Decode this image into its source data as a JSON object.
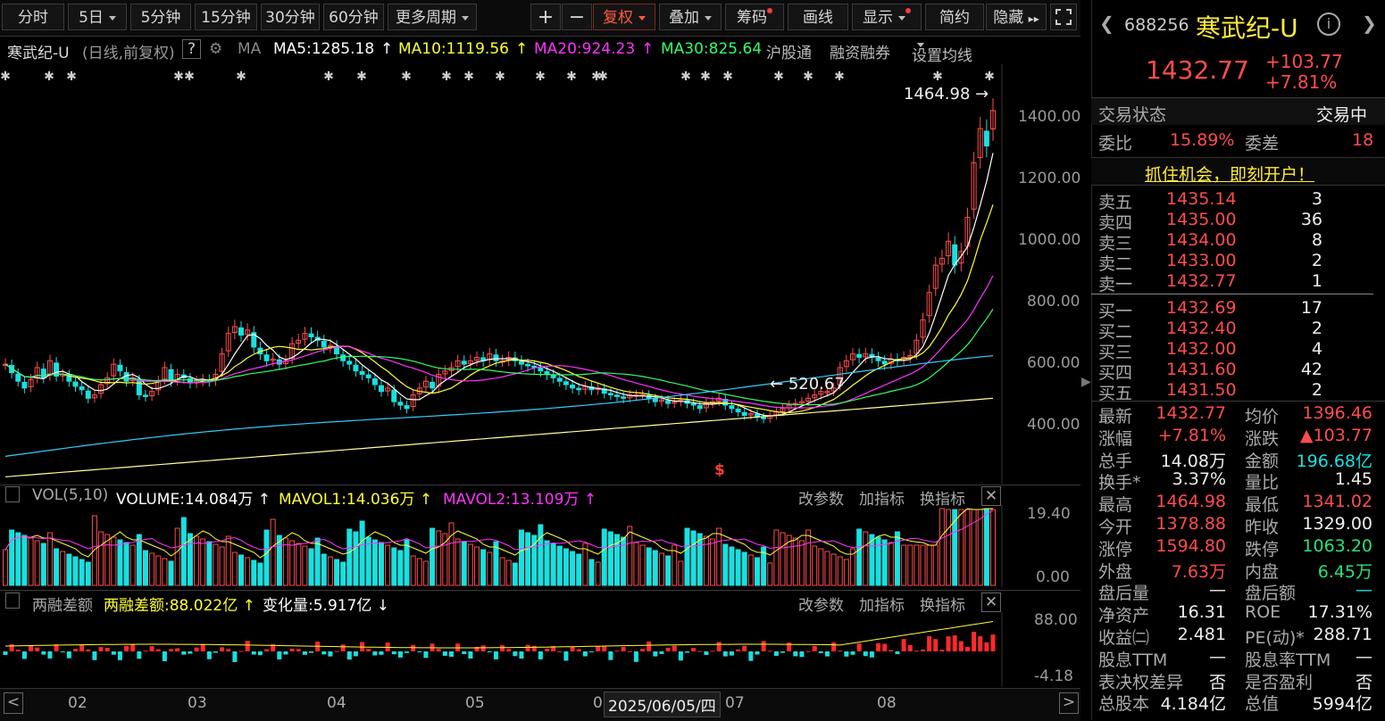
{
  "toolbar": {
    "periods": [
      "分时",
      "5日",
      "5分钟",
      "15分钟",
      "30分钟",
      "60分钟",
      "更多周期"
    ],
    "plus": "+",
    "minus": "−",
    "fuquan": "复权",
    "overlay": "叠加",
    "chips": "筹码",
    "draw": "画线",
    "display": "显示",
    "simple": "简约",
    "hide": "隐藏",
    "hide_arrows": "▸▸"
  },
  "infobar": {
    "name": "寒武纪-U",
    "mode": "(日线,前复权)",
    "help": "?",
    "ma_label": "MA",
    "ma5": "MA5:1285.18",
    "ma10": "MA10:1119.56",
    "ma20": "MA20:924.23",
    "ma30": "MA30:825.64",
    "hgt": "沪股通",
    "rzrq": "融资融券",
    "set_ma": "设置均线"
  },
  "main_chart": {
    "y_ticks": [
      "1400.00",
      "1200.00",
      "1000.00",
      "800.00",
      "600.00",
      "400.00"
    ],
    "high_label": "1464.98",
    "low_label": "520.67",
    "marker": "$"
  },
  "vol_pane": {
    "title": "VOL(5,10)",
    "volume": "VOLUME:14.084万",
    "mavol1": "MAVOL1:14.036万",
    "mavol2": "MAVOL2:13.109万",
    "actions": [
      "改参数",
      "加指标",
      "换指标"
    ],
    "y_top": "19.40",
    "y_bottom": "0.00"
  },
  "margin_pane": {
    "title": "两融差额",
    "value": "两融差额:88.022亿",
    "change": "变化量:5.917亿",
    "actions": [
      "改参数",
      "加指标",
      "换指标"
    ],
    "y_top": "88.00",
    "y_bottom": "-4.18"
  },
  "x_axis": {
    "months": [
      "02",
      "03",
      "04",
      "05",
      "06",
      "07",
      "08"
    ],
    "cursor_date": "2025/06/05/四"
  },
  "right_panel": {
    "code": "688256",
    "name": "寒武纪-U",
    "price": "1432.77",
    "change": "+103.77",
    "change_pct": "+7.81%",
    "status_label": "交易状态",
    "status_value": "交易中",
    "weibi_label": "委比",
    "weibi_value": "15.89%",
    "weicha_label": "委差",
    "weicha_value": "18",
    "promo": "抓住机会，即刻开户！",
    "asks": [
      {
        "label": "卖五",
        "price": "1435.14",
        "vol": "3"
      },
      {
        "label": "卖四",
        "price": "1435.00",
        "vol": "36"
      },
      {
        "label": "卖三",
        "price": "1434.00",
        "vol": "8"
      },
      {
        "label": "卖二",
        "price": "1433.00",
        "vol": "2"
      },
      {
        "label": "卖一",
        "price": "1432.77",
        "vol": "1"
      }
    ],
    "bids": [
      {
        "label": "买一",
        "price": "1432.69",
        "vol": "17"
      },
      {
        "label": "买二",
        "price": "1432.40",
        "vol": "2"
      },
      {
        "label": "买三",
        "price": "1432.00",
        "vol": "4"
      },
      {
        "label": "买四",
        "price": "1431.60",
        "vol": "42"
      },
      {
        "label": "买五",
        "price": "1431.50",
        "vol": "2"
      }
    ],
    "stats": [
      {
        "l1": "最新",
        "v1": "1432.77",
        "c1": "red",
        "l2": "均价",
        "v2": "1396.46",
        "c2": "red"
      },
      {
        "l1": "涨幅",
        "v1": "+7.81%",
        "c1": "red",
        "l2": "涨跌",
        "v2": "▲103.77",
        "c2": "red"
      },
      {
        "l1": "总手",
        "v1": "14.08万",
        "c1": "white",
        "l2": "金额",
        "v2": "196.68亿",
        "c2": "cyan"
      },
      {
        "l1": "换手*",
        "v1": "3.37%",
        "c1": "white",
        "l2": "量比",
        "v2": "1.45",
        "c2": "white"
      },
      {
        "l1": "最高",
        "v1": "1464.98",
        "c1": "red",
        "l2": "最低",
        "v2": "1341.02",
        "c2": "red"
      },
      {
        "l1": "今开",
        "v1": "1378.88",
        "c1": "red",
        "l2": "昨收",
        "v2": "1329.00",
        "c2": "white"
      },
      {
        "l1": "涨停",
        "v1": "1594.80",
        "c1": "red",
        "l2": "跌停",
        "v2": "1063.20",
        "c2": "green"
      },
      {
        "l1": "外盘",
        "v1": "7.63万",
        "c1": "red",
        "l2": "内盘",
        "v2": "6.45万",
        "c2": "green"
      },
      {
        "l1": "盘后量",
        "v1": "—",
        "c1": "white",
        "l2": "盘后额",
        "v2": "—",
        "c2": "cyan"
      },
      {
        "l1": "净资产",
        "v1": "16.31",
        "c1": "white",
        "l2": "ROE",
        "v2": "17.31%",
        "c2": "white"
      },
      {
        "l1": "收益㈡",
        "v1": "2.481",
        "c1": "white",
        "l2": "PE(动)*",
        "v2": "288.71",
        "c2": "white"
      },
      {
        "l1": "股息TTM",
        "v1": "—",
        "c1": "white",
        "l2": "股息率TTM",
        "v2": "—",
        "c2": "white"
      },
      {
        "l1": "表决权差异",
        "v1": "否",
        "c1": "white",
        "l2": "是否盈利",
        "v2": "否",
        "c2": "white"
      },
      {
        "l1": "总股本",
        "v1": "4.184亿",
        "c1": "white",
        "l2": "总值",
        "v2": "5994亿",
        "c2": "white"
      }
    ]
  },
  "colors": {
    "up": "#ff4d4d",
    "down": "#19e0e0",
    "ma5": "#ffffff",
    "ma10": "#ffff33",
    "ma20": "#ff33ff",
    "ma30": "#33ff66",
    "ma60": "#33ccff",
    "ma120": "#ffff99"
  },
  "chart_data": {
    "type": "candlestick",
    "title": "寒武纪-U",
    "ylim": [
      340,
      1490
    ],
    "closes": [
      690,
      665,
      640,
      620,
      645,
      680,
      650,
      700,
      655,
      660,
      640,
      625,
      615,
      590,
      600,
      630,
      650,
      690,
      670,
      640,
      650,
      600,
      595,
      610,
      640,
      680,
      640,
      660,
      650,
      635,
      640,
      645,
      640,
      660,
      720,
      780,
      800,
      775,
      790,
      740,
      720,
      700,
      705,
      690,
      700,
      750,
      760,
      780,
      770,
      760,
      740,
      745,
      720,
      700,
      690,
      670,
      660,
      650,
      630,
      610,
      620,
      580,
      570,
      560,
      600,
      620,
      640,
      620,
      660,
      670,
      680,
      700,
      690,
      700,
      710,
      700,
      720,
      700,
      700,
      710,
      700,
      690,
      685,
      680,
      670,
      660,
      650,
      640,
      630,
      620,
      615,
      625,
      615,
      620,
      605,
      600,
      595,
      590,
      600,
      600,
      600,
      590,
      580,
      585,
      575,
      580,
      585,
      575,
      570,
      560,
      575,
      580,
      590,
      570,
      560,
      550,
      540,
      545,
      535,
      530,
      540,
      550,
      560,
      570,
      575,
      580,
      590,
      600,
      610,
      610,
      620,
      680,
      700,
      720,
      710,
      720,
      710,
      700,
      690,
      705,
      700,
      710,
      715,
      760,
      820,
      900,
      980,
      1000,
      1050,
      980,
      1020,
      1120,
      1280,
      1380,
      1329,
      1432.77
    ]
  }
}
